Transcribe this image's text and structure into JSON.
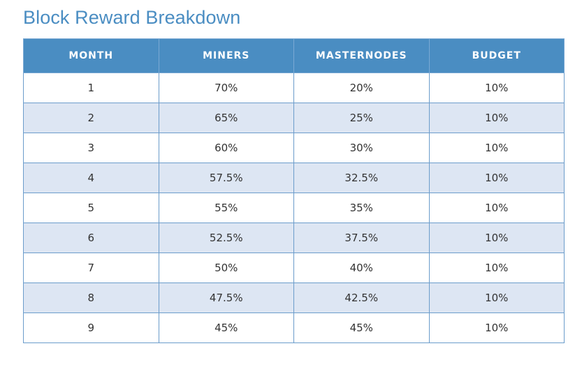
{
  "title": "Block Reward Breakdown",
  "table": {
    "headers": [
      "MONTH",
      "MINERS",
      "MASTERNODES",
      "BUDGET"
    ],
    "rows": [
      [
        "1",
        "70%",
        "20%",
        "10%"
      ],
      [
        "2",
        "65%",
        "25%",
        "10%"
      ],
      [
        "3",
        "60%",
        "30%",
        "10%"
      ],
      [
        "4",
        "57.5%",
        "32.5%",
        "10%"
      ],
      [
        "5",
        "55%",
        "35%",
        "10%"
      ],
      [
        "6",
        "52.5%",
        "37.5%",
        "10%"
      ],
      [
        "7",
        "50%",
        "40%",
        "10%"
      ],
      [
        "8",
        "47.5%",
        "42.5%",
        "10%"
      ],
      [
        "9",
        "45%",
        "45%",
        "10%"
      ]
    ]
  },
  "colors": {
    "accent": "#4a8dc2",
    "stripe": "#dde6f3",
    "border": "#6b9ccb"
  }
}
